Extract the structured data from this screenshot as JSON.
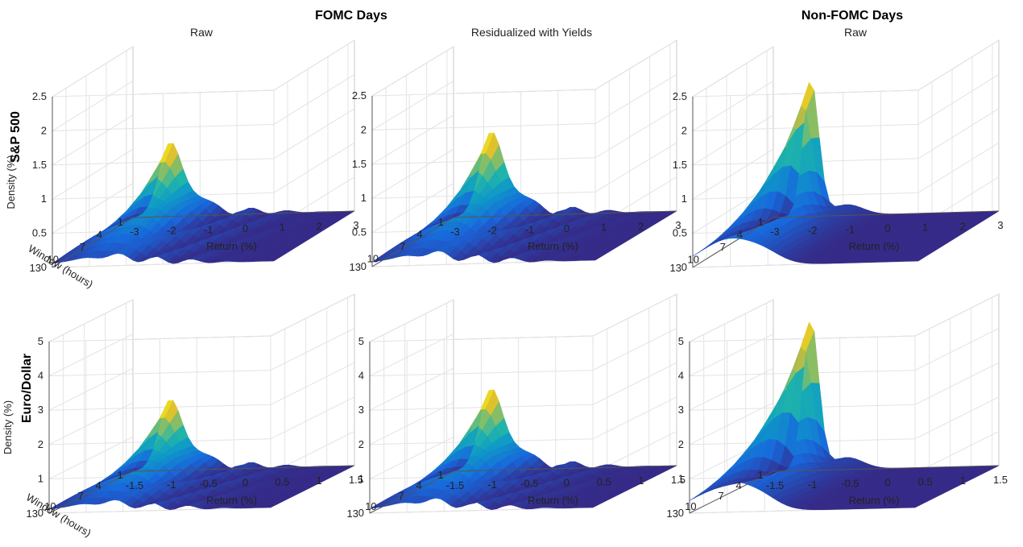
{
  "figure": {
    "group_titles": [
      "FOMC Days",
      "Non-FOMC Days"
    ],
    "row_labels": [
      "S&P 500",
      "Euro/Dollar"
    ]
  },
  "chart_data": [
    {
      "type": "surface",
      "title": "Raw",
      "group": "FOMC Days",
      "row": "S&P 500",
      "xlabel": "Return (%)",
      "ylabel": "Window (hours)",
      "zlabel": "Density (%)",
      "xlim": [
        -3,
        3
      ],
      "xticks": [
        "-3",
        "-2",
        "-1",
        "0",
        "1",
        "2",
        "3"
      ],
      "ylim": [
        1,
        13
      ],
      "yticks": [
        "1",
        "4",
        "7",
        "10",
        "13"
      ],
      "zlim": [
        0,
        2.5
      ],
      "zticks": [
        "0",
        "0.5",
        "1",
        "1.5",
        "2",
        "2.5"
      ],
      "peak": {
        "x": -2,
        "window": 1,
        "density": 1.05
      },
      "shape": "multimodal"
    },
    {
      "type": "surface",
      "title": "Residualized with Yields",
      "group": "FOMC Days",
      "row": "S&P 500",
      "xlabel": "Return (%)",
      "ylabel": "",
      "zlabel": "",
      "xlim": [
        -3,
        3
      ],
      "xticks": [
        "-3",
        "-2",
        "-1",
        "0",
        "1",
        "2",
        "3"
      ],
      "ylim": [
        1,
        13
      ],
      "yticks": [
        "1",
        "4",
        "7",
        "10",
        "13"
      ],
      "zlim": [
        0,
        2.5
      ],
      "zticks": [
        "0",
        "0.5",
        "1",
        "1.5",
        "2",
        "2.5"
      ],
      "peak": {
        "x": -2,
        "window": 1,
        "density": 1.2
      },
      "shape": "multimodal"
    },
    {
      "type": "surface",
      "title": "Raw",
      "group": "Non-FOMC Days",
      "row": "S&P 500",
      "xlabel": "Return (%)",
      "ylabel": "",
      "zlabel": "",
      "xlim": [
        -3,
        3
      ],
      "xticks": [
        "-3",
        "-2",
        "-1",
        "0",
        "1",
        "2",
        "3"
      ],
      "ylim": [
        1,
        13
      ],
      "yticks": [
        "1",
        "4",
        "7",
        "10",
        "13"
      ],
      "zlim": [
        0,
        2.5
      ],
      "zticks": [
        "0",
        "0.5",
        "1",
        "1.5",
        "2",
        "2.5"
      ],
      "peak": {
        "x": -2,
        "window": 1,
        "density": 2.0
      },
      "shape": "smooth"
    },
    {
      "type": "surface",
      "title": "",
      "group": "FOMC Days",
      "row": "Euro/Dollar",
      "xlabel": "Return (%)",
      "ylabel": "Window (hours)",
      "zlabel": "Density (%)",
      "xlim": [
        -1.5,
        1.5
      ],
      "xticks": [
        "-1.5",
        "-1",
        "-0.5",
        "0",
        "0.5",
        "1",
        "1.5"
      ],
      "ylim": [
        1,
        13
      ],
      "yticks": [
        "1",
        "4",
        "7",
        "10",
        "13"
      ],
      "zlim": [
        0,
        5
      ],
      "zticks": [
        "0",
        "1",
        "2",
        "3",
        "4",
        "5"
      ],
      "peak": {
        "x": -1,
        "window": 1,
        "density": 2.0
      },
      "shape": "multimodal"
    },
    {
      "type": "surface",
      "title": "",
      "group": "FOMC Days",
      "row": "Euro/Dollar",
      "xlabel": "Return (%)",
      "ylabel": "",
      "zlabel": "",
      "xlim": [
        -1.5,
        1.5
      ],
      "xticks": [
        "-1.5",
        "-1",
        "-0.5",
        "0",
        "0.5",
        "1",
        "1.5"
      ],
      "ylim": [
        1,
        13
      ],
      "yticks": [
        "1",
        "4",
        "7",
        "10",
        "13"
      ],
      "zlim": [
        0,
        5
      ],
      "zticks": [
        "0",
        "1",
        "2",
        "3",
        "4",
        "5"
      ],
      "peak": {
        "x": -1,
        "window": 1,
        "density": 2.3
      },
      "shape": "multimodal"
    },
    {
      "type": "surface",
      "title": "",
      "group": "Non-FOMC Days",
      "row": "Euro/Dollar",
      "xlabel": "Return (%)",
      "ylabel": "",
      "zlabel": "",
      "xlim": [
        -1.5,
        1.5
      ],
      "xticks": [
        "-1.5",
        "-1",
        "-0.5",
        "0",
        "0.5",
        "1",
        "1.5"
      ],
      "ylim": [
        1,
        13
      ],
      "yticks": [
        "1",
        "4",
        "7",
        "10",
        "13"
      ],
      "zlim": [
        0,
        5
      ],
      "zticks": [
        "0",
        "1",
        "2",
        "3",
        "4",
        "5"
      ],
      "peak": {
        "x": -1,
        "window": 1,
        "density": 4.4
      },
      "shape": "smooth"
    }
  ]
}
